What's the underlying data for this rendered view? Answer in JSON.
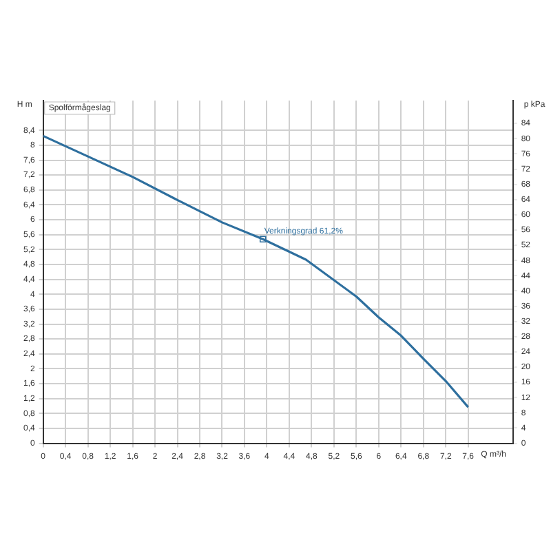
{
  "chart_data": {
    "type": "line",
    "title": "Spolförmågeslag",
    "xlabel": "Q m³/h",
    "ylabel": "H m",
    "y2label": "p kPa",
    "x": [
      0,
      0.8,
      1.6,
      2.4,
      3.2,
      3.93,
      4.7,
      5.6,
      6.0,
      6.4,
      6.8,
      7.2,
      7.6
    ],
    "series": [
      {
        "color": "#2e6f9e",
        "values": [
          8.25,
          7.7,
          7.15,
          6.53,
          5.93,
          5.48,
          4.93,
          3.94,
          3.38,
          2.89,
          2.27,
          1.67,
          0.97
        ]
      }
    ],
    "annotations": [
      {
        "text": "Verkningsgrad 61,2%",
        "x": 3.93,
        "y": 5.48
      }
    ],
    "xlim": [
      0,
      8.4
    ],
    "xticks": [
      0,
      {
        "value": 0.4,
        "label": "0,4"
      },
      {
        "value": 0.8,
        "label": "0,8"
      },
      {
        "value": 1.2,
        "label": "1,2"
      },
      {
        "value": 1.6,
        "label": "1,6"
      },
      2,
      {
        "value": 2.4,
        "label": "2,4"
      },
      {
        "value": 2.8,
        "label": "2,8"
      },
      {
        "value": 3.2,
        "label": "3,2"
      },
      {
        "value": 3.6,
        "label": "3,6"
      },
      4,
      {
        "value": 4.4,
        "label": "4,4"
      },
      {
        "value": 4.8,
        "label": "4,8"
      },
      {
        "value": 5.2,
        "label": "5,2"
      },
      {
        "value": 5.6,
        "label": "5,6"
      },
      6,
      {
        "value": 6.4,
        "label": "6,4"
      },
      {
        "value": 6.8,
        "label": "6,8"
      },
      {
        "value": 7.2,
        "label": "7,2"
      },
      {
        "value": 7.6,
        "label": "7,6"
      }
    ],
    "ylim": [
      0,
      9.2
    ],
    "yticks": [
      0,
      {
        "value": 0.4,
        "label": "0,4"
      },
      {
        "value": 0.8,
        "label": "0,8"
      },
      {
        "value": 1.2,
        "label": "1,2"
      },
      {
        "value": 1.6,
        "label": "1,6"
      },
      2,
      {
        "value": 2.4,
        "label": "2,4"
      },
      {
        "value": 2.8,
        "label": "2,8"
      },
      {
        "value": 3.2,
        "label": "3,2"
      },
      {
        "value": 3.6,
        "label": "3,6"
      },
      4,
      {
        "value": 4.4,
        "label": "4,4"
      },
      {
        "value": 4.8,
        "label": "4,8"
      },
      {
        "value": 5.2,
        "label": "5,2"
      },
      {
        "value": 5.6,
        "label": "5,6"
      },
      6,
      {
        "value": 6.4,
        "label": "6,4"
      },
      {
        "value": 6.8,
        "label": "6,8"
      },
      {
        "value": 7.2,
        "label": "7,2"
      },
      {
        "value": 7.6,
        "label": "7,6"
      },
      8,
      {
        "value": 8.4,
        "label": "8,4"
      }
    ],
    "y2lim": [
      0,
      90
    ],
    "y2ticks": [
      0,
      4,
      8,
      12,
      16,
      20,
      24,
      28,
      32,
      36,
      40,
      44,
      48,
      52,
      56,
      60,
      64,
      68,
      72,
      76,
      80,
      84
    ],
    "grid": true,
    "legend": false,
    "marker": "none",
    "line_style": "solid"
  }
}
